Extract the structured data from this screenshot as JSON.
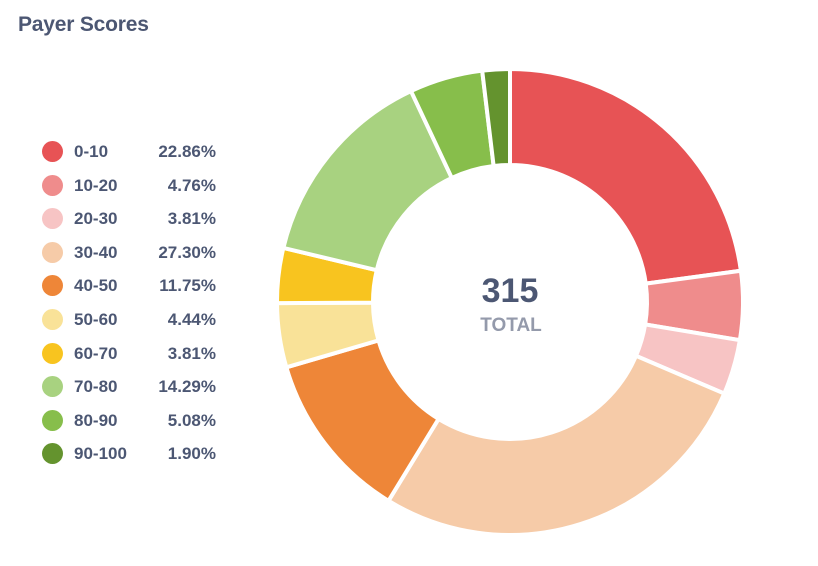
{
  "header": {
    "title": "Payer Scores"
  },
  "chart_data": {
    "type": "pie",
    "donut": true,
    "center_value": "315",
    "center_label": "TOTAL",
    "total": 315,
    "categories": [
      "0-10",
      "10-20",
      "20-30",
      "30-40",
      "40-50",
      "50-60",
      "60-70",
      "70-80",
      "80-90",
      "90-100"
    ],
    "percent_labels": [
      "22.86%",
      "4.76%",
      "3.81%",
      "27.30%",
      "11.75%",
      "4.44%",
      "3.81%",
      "14.29%",
      "5.08%",
      "1.90%"
    ],
    "values": [
      72,
      15,
      12,
      86,
      37,
      14,
      12,
      45,
      16,
      6
    ],
    "colors": [
      "#e75355",
      "#ef8c8c",
      "#f7c4c4",
      "#f6cba8",
      "#ee8638",
      "#f9e298",
      "#f8c41f",
      "#a8d280",
      "#87be4b",
      "#64932e"
    ],
    "legend_position": "left",
    "start_angle": "top",
    "direction": "clockwise"
  }
}
